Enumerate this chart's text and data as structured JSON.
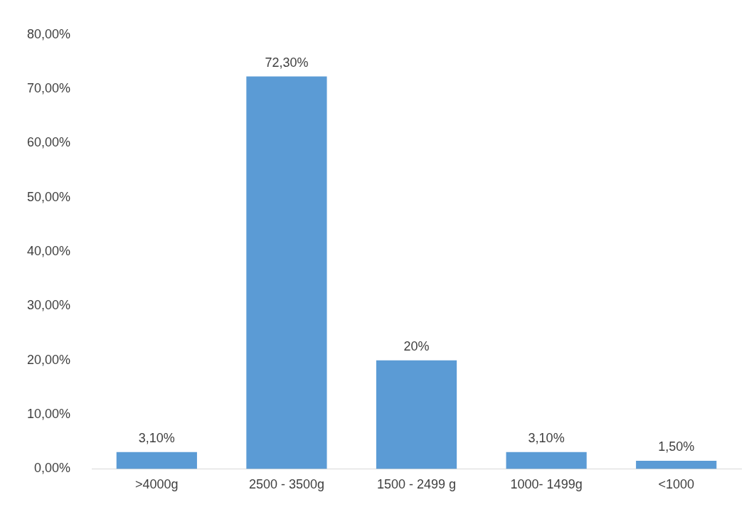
{
  "chart_data": {
    "type": "bar",
    "categories": [
      ">4000g",
      "2500 - 3500g",
      "1500 - 2499 g",
      "1000- 1499g",
      "<1000"
    ],
    "values": [
      3.1,
      72.3,
      20,
      3.1,
      1.5
    ],
    "value_labels": [
      "3,10%",
      "72,30%",
      "20%",
      "3,10%",
      "1,50%"
    ],
    "color": "#5b9bd5",
    "ylim": [
      0,
      80
    ],
    "yticks": [
      {
        "value": 0,
        "label": "0,00%"
      },
      {
        "value": 10,
        "label": "10,00%"
      },
      {
        "value": 20,
        "label": "20,00%"
      },
      {
        "value": 30,
        "label": "30,00%"
      },
      {
        "value": 40,
        "label": "40,00%"
      },
      {
        "value": 50,
        "label": "50,00%"
      },
      {
        "value": 60,
        "label": "60,00%"
      },
      {
        "value": 70,
        "label": "70,00%"
      },
      {
        "value": 80,
        "label": "80,00%"
      }
    ],
    "grid": false,
    "legend": false
  }
}
